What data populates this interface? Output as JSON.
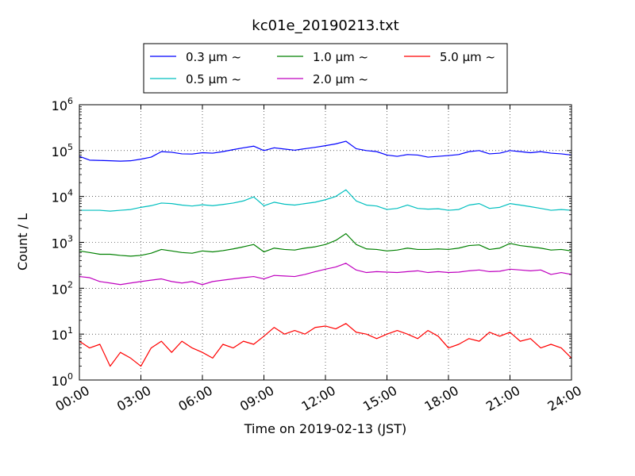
{
  "chart_data": {
    "type": "line",
    "title": "kc01e_20190213.txt",
    "xlabel": "Time on 2019-02-13 (JST)",
    "ylabel": "Count / L",
    "yscale": "log",
    "ylim": [
      1,
      1000000
    ],
    "xlim": [
      "00:00",
      "24:00"
    ],
    "grid": true,
    "legend_placement": "top-center",
    "x_ticks": [
      "00:00",
      "03:00",
      "06:00",
      "09:00",
      "12:00",
      "15:00",
      "18:00",
      "21:00",
      "24:00"
    ],
    "y_ticks": [
      {
        "base": "10",
        "exp": "0"
      },
      {
        "base": "10",
        "exp": "1"
      },
      {
        "base": "10",
        "exp": "2"
      },
      {
        "base": "10",
        "exp": "3"
      },
      {
        "base": "10",
        "exp": "4"
      },
      {
        "base": "10",
        "exp": "5"
      },
      {
        "base": "10",
        "exp": "6"
      }
    ],
    "x_hours": [
      0,
      0.5,
      1,
      1.5,
      2,
      2.5,
      3,
      3.5,
      4,
      4.5,
      5,
      5.5,
      6,
      6.5,
      7,
      7.5,
      8,
      8.5,
      9,
      9.5,
      10,
      10.5,
      11,
      11.5,
      12,
      12.5,
      13,
      13.5,
      14,
      14.5,
      15,
      15.5,
      16,
      16.5,
      17,
      17.5,
      18,
      18.5,
      19,
      19.5,
      20,
      20.5,
      21,
      21.5,
      22,
      22.5,
      23,
      23.5,
      24
    ],
    "series": [
      {
        "name": "0.3 μm ~",
        "color": "#0000ff",
        "values": [
          75000,
          62000,
          61000,
          60000,
          59000,
          60000,
          65000,
          72000,
          95000,
          92000,
          85000,
          84000,
          90000,
          88000,
          95000,
          105000,
          115000,
          125000,
          100000,
          115000,
          108000,
          102000,
          110000,
          118000,
          128000,
          140000,
          160000,
          110000,
          100000,
          95000,
          80000,
          75000,
          82000,
          80000,
          72000,
          75000,
          78000,
          82000,
          95000,
          100000,
          85000,
          88000,
          100000,
          95000,
          90000,
          95000,
          88000,
          85000,
          80000
        ]
      },
      {
        "name": "0.5 μm ~",
        "color": "#00bfbf",
        "values": [
          5000,
          5000,
          5000,
          4800,
          5000,
          5200,
          5800,
          6300,
          7200,
          7000,
          6500,
          6200,
          6600,
          6300,
          6700,
          7200,
          8000,
          9800,
          6300,
          7500,
          6800,
          6500,
          7000,
          7500,
          8500,
          10000,
          14000,
          8000,
          6500,
          6200,
          5200,
          5500,
          6500,
          5500,
          5300,
          5400,
          5000,
          5200,
          6500,
          7000,
          5500,
          5800,
          7000,
          6500,
          6000,
          5500,
          5000,
          5200,
          5000
        ]
      },
      {
        "name": "1.0 μm ~",
        "color": "#008000",
        "values": [
          650,
          600,
          550,
          550,
          520,
          500,
          520,
          580,
          700,
          650,
          600,
          580,
          650,
          620,
          660,
          720,
          800,
          900,
          620,
          750,
          700,
          680,
          750,
          800,
          900,
          1100,
          1550,
          900,
          720,
          700,
          650,
          680,
          750,
          700,
          700,
          720,
          700,
          750,
          850,
          880,
          700,
          750,
          950,
          850,
          800,
          750,
          680,
          700,
          650
        ]
      },
      {
        "name": "2.0 μm ~",
        "color": "#bf00bf",
        "values": [
          180,
          170,
          140,
          130,
          120,
          130,
          140,
          150,
          160,
          140,
          130,
          140,
          120,
          140,
          150,
          160,
          170,
          180,
          160,
          190,
          185,
          180,
          200,
          230,
          260,
          290,
          350,
          250,
          220,
          230,
          225,
          220,
          230,
          240,
          220,
          230,
          220,
          225,
          240,
          250,
          230,
          235,
          260,
          250,
          240,
          250,
          200,
          220,
          200
        ]
      },
      {
        "name": "5.0 μm ~",
        "color": "#ff0000",
        "values": [
          7,
          5,
          6,
          2,
          4,
          3,
          2,
          5,
          7,
          4,
          7,
          5,
          4,
          3,
          6,
          5,
          7,
          6,
          9,
          14,
          10,
          12,
          10,
          14,
          15,
          13,
          17,
          11,
          10,
          8,
          10,
          12,
          10,
          8,
          12,
          9,
          5,
          6,
          8,
          7,
          11,
          9,
          11,
          7,
          8,
          5,
          6,
          5,
          3
        ]
      }
    ]
  }
}
